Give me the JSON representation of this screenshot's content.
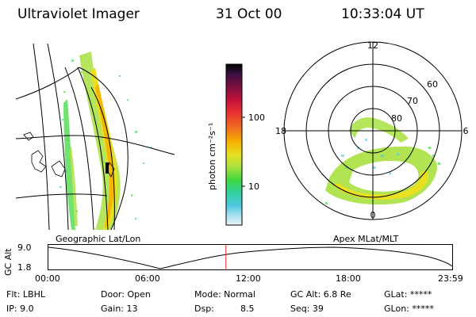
{
  "header": {
    "title": "Ultraviolet Imager",
    "date": "31 Oct 00",
    "time": "10:33:04 UT"
  },
  "colorbar": {
    "unit_label": "photon cm⁻²s⁻¹",
    "tick_100": "100",
    "tick_10": "10",
    "colors": [
      "#000000",
      "#3a1040",
      "#7a1040",
      "#c0103a",
      "#e83030",
      "#f07020",
      "#f5b000",
      "#e8e020",
      "#a8e040",
      "#40d840",
      "#30d0a0",
      "#50c8e0",
      "#a8e0f0",
      "#e8f4f8"
    ]
  },
  "map": {
    "caption": "Geographic Lat/Lon"
  },
  "polar": {
    "caption": "Apex MLat/MLT",
    "mlt_12": "12",
    "mlt_18": "18",
    "mlt_6": "6",
    "mlt_0": "0",
    "lat_60": "60",
    "lat_70": "70",
    "lat_80": "80"
  },
  "altitude_plot": {
    "ylabel": "GC Alt",
    "ytick_top": "9.0",
    "ytick_bottom": "1.8",
    "xticks": [
      "00:00",
      "06:00",
      "12:00",
      "18:00",
      "23:59"
    ],
    "marker_hour": 10.55
  },
  "status": {
    "flt": "Flt: LBHL",
    "ip": "IP: 9.0",
    "door": "Door: Open",
    "gain": "Gain: 13",
    "mode": "Mode: Normal",
    "dsp": "Dsp:",
    "dsp_value": "8.5",
    "gc_alt": "GC Alt: 6.8 Re",
    "seq": "Seq: 39",
    "glat": "GLat: *****",
    "glon": "GLon: *****"
  }
}
